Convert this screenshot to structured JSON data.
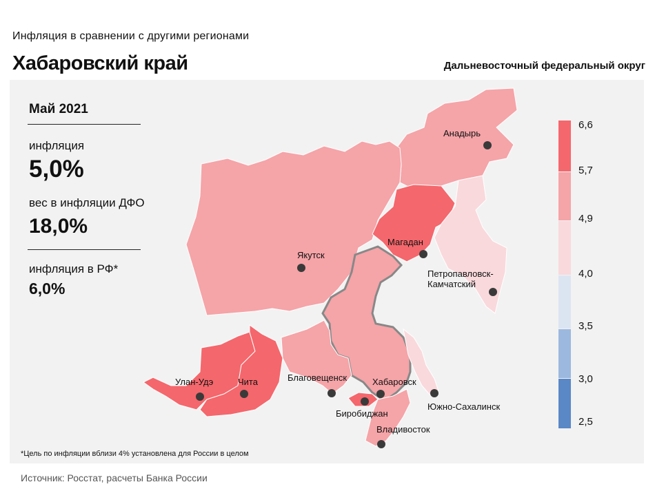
{
  "header": {
    "subtitle": "Инфляция  в сравнении  с другими  регионами",
    "title": "Хабаровский край",
    "district": "Дальневосточный федеральный округ"
  },
  "stats": {
    "date": "Май 2021",
    "inflation_label": "инфляция",
    "inflation_value": "5,0%",
    "weight_label": "вес в инфляции  ДФО",
    "weight_value": "18,0%",
    "rf_label": "инфляция  в РФ*",
    "rf_value": "6,0%"
  },
  "map": {
    "cities": {
      "anadyr": "Анадырь",
      "yakutsk": "Якутск",
      "magadan": "Магадан",
      "petropavlovsk_1": "Петропавловск-",
      "petropavlovsk_2": "Камчатский",
      "ulanude": "Улан-Удэ",
      "chita": "Чита",
      "blagoveshchensk": "Благовещенск",
      "khabarovsk": "Хабаровск",
      "birobidzhan": "Биробиджан",
      "yuzhno": "Южно-Сахалинск",
      "vladivostok": "Владивосток"
    },
    "colors": {
      "band_57_66": "#f4676c",
      "band_49_57": "#f5a4a8",
      "band_40_49": "#f9d9dc",
      "band_35_40": "#dbe5f2",
      "band_30_35": "#9cb8de",
      "band_25_30": "#5a87c6",
      "highlight_border": "#888888"
    }
  },
  "legend": {
    "labels": [
      "6,6",
      "5,7",
      "4,9",
      "4,0",
      "3,5",
      "3,0",
      "2,5"
    ]
  },
  "footnote": "*Цель по инфляции вблизи 4% установлена для России в целом",
  "source": "Источник: Росстат, расчеты Банка России"
}
